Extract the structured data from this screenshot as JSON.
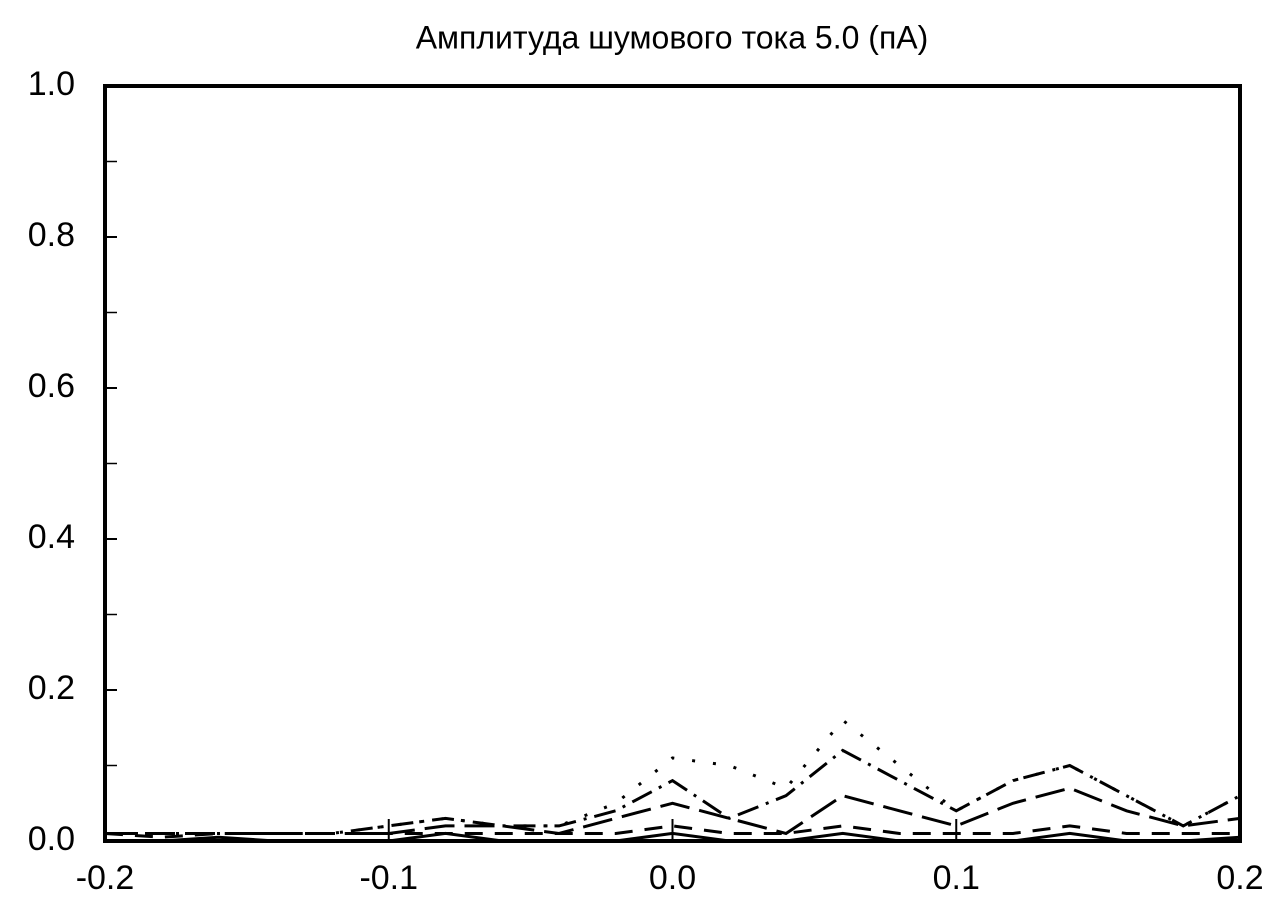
{
  "chart_data": {
    "type": "line",
    "title": "Амплитуда шумового тока 5.0 (пА)",
    "x": [
      -0.2,
      -0.18,
      -0.16,
      -0.14,
      -0.12,
      -0.1,
      -0.08,
      -0.06,
      -0.04,
      -0.02,
      0,
      0.02,
      0.04,
      0.06,
      0.08,
      0.1,
      0.12,
      0.14,
      0.16,
      0.18,
      0.2
    ],
    "series": [
      {
        "color": "#000000",
        "dash": "3 18",
        "values": [
          0.01,
          0.01,
          0.01,
          0.01,
          0.01,
          0.02,
          0.03,
          0.02,
          0.02,
          0.05,
          0.11,
          0.1,
          0.07,
          0.16,
          0.1,
          0.04,
          0.08,
          0.1,
          0.06,
          0.02,
          0.06
        ]
      },
      {
        "color": "#000000",
        "dash": "22 8 3 8",
        "values": [
          0.01,
          0.01,
          0.01,
          0.01,
          0.01,
          0.02,
          0.03,
          0.02,
          0.02,
          0.04,
          0.08,
          0.03,
          0.06,
          0.12,
          0.08,
          0.04,
          0.08,
          0.1,
          0.06,
          0.02,
          0.06
        ]
      },
      {
        "color": "#000000",
        "dash": "30 10",
        "values": [
          0.01,
          0.01,
          0.01,
          0.01,
          0.01,
          0.01,
          0.02,
          0.02,
          0.01,
          0.03,
          0.05,
          0.03,
          0.01,
          0.06,
          0.04,
          0.02,
          0.05,
          0.07,
          0.04,
          0.02,
          0.03
        ]
      },
      {
        "color": "#000000",
        "dash": "18 12",
        "values": [
          0.01,
          0.005,
          0.01,
          0.01,
          0.01,
          0.01,
          0.01,
          0.01,
          0.01,
          0.01,
          0.02,
          0.01,
          0.01,
          0.02,
          0.01,
          0.01,
          0.01,
          0.02,
          0.01,
          0.01,
          0.01
        ]
      },
      {
        "color": "#000000",
        "dash": "",
        "values": [
          0,
          0,
          0.005,
          0,
          0,
          0,
          0.01,
          0,
          0,
          0,
          0.01,
          0,
          0,
          0.01,
          0,
          0,
          0,
          0.01,
          0,
          0,
          0.005
        ]
      }
    ],
    "xlim": [
      -0.2,
      0.2
    ],
    "xticks": [
      -0.2,
      -0.1,
      {
        "value": 0,
        "label": "0.0"
      },
      0.1,
      0.2
    ],
    "ylim": [
      0,
      1
    ],
    "yticks": [
      {
        "value": 0,
        "label": "0.0"
      },
      0.2,
      0.4,
      0.6,
      0.8,
      {
        "value": 1,
        "label": "1.0"
      }
    ],
    "yminorticks": [
      0.1,
      0.3,
      0.5,
      0.7,
      0.9
    ],
    "grid": false
  }
}
